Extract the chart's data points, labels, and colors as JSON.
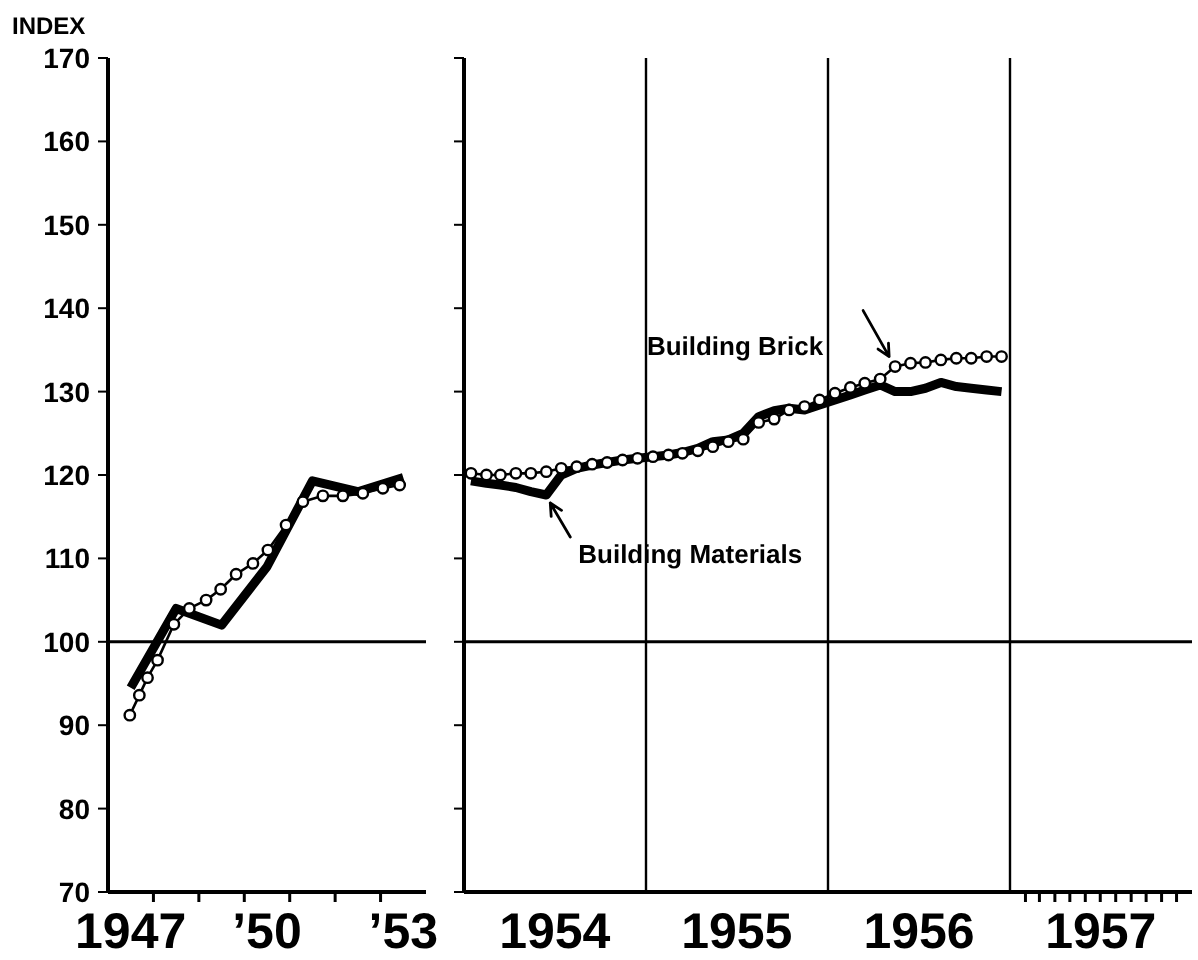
{
  "chart_data": [
    {
      "type": "line",
      "ylabel": "INDEX",
      "ylim": [
        70,
        170
      ],
      "yticks": [
        70,
        80,
        90,
        100,
        110,
        120,
        130,
        140,
        150,
        160,
        170
      ],
      "xlim": [
        1946.5,
        1953.5
      ],
      "xticks": [
        {
          "value": 1947,
          "label": "1947"
        },
        {
          "value": 1947.5,
          "label": null
        },
        {
          "value": 1948.5,
          "label": null
        },
        {
          "value": 1949.5,
          "label": null
        },
        {
          "value": 1950,
          "label": "’50"
        },
        {
          "value": 1950.5,
          "label": null
        },
        {
          "value": 1951.5,
          "label": null
        },
        {
          "value": 1952.5,
          "label": null
        },
        {
          "value": 1953,
          "label": "’53"
        }
      ],
      "ref_lines": [
        {
          "axis": "y",
          "value": 100,
          "color": "#000000"
        }
      ],
      "series": [
        {
          "color": "#000000",
          "marker": "none",
          "x": [
            1947,
            1948,
            1949,
            1950,
            1951,
            1952,
            1953
          ],
          "values": [
            94.5,
            104,
            102,
            109,
            119.3,
            118,
            119.7
          ]
        },
        {
          "color": "#000000",
          "marker": "circle",
          "x": [
            1946.98,
            1947.19,
            1947.37,
            1947.59,
            1947.95,
            1948.29,
            1948.66,
            1948.98,
            1949.32,
            1949.69,
            1950.02,
            1950.42,
            1950.79,
            1951.23,
            1951.67,
            1952.11,
            1952.55,
            1952.92
          ],
          "values": [
            91.2,
            93.6,
            95.7,
            97.8,
            102.1,
            104,
            105,
            106.3,
            108.1,
            109.4,
            111,
            114,
            116.8,
            117.5,
            117.5,
            117.8,
            118.4,
            118.8
          ]
        }
      ]
    },
    {
      "type": "line",
      "tick_labels": "x",
      "ylim": [
        70,
        170
      ],
      "yticks": [
        70,
        80,
        90,
        100,
        110,
        120,
        130,
        140,
        150,
        160,
        170
      ],
      "xlim": [
        "1954-01-01",
        "1958-01-01"
      ],
      "xticks": [
        {
          "value": "1954-07-02",
          "label": "1954"
        },
        {
          "value": "1955-07-02",
          "label": "1955"
        },
        {
          "value": "1956-07-02",
          "label": "1956"
        },
        {
          "value": "1957-07-02",
          "label": "1957"
        },
        {
          "value": "1957-02-01",
          "label": null
        },
        {
          "value": "1957-03-01",
          "label": null
        },
        {
          "value": "1957-04-01",
          "label": null
        },
        {
          "value": "1957-05-01",
          "label": null
        },
        {
          "value": "1957-06-01",
          "label": null
        },
        {
          "value": "1957-07-01",
          "label": null
        },
        {
          "value": "1957-08-01",
          "label": null
        },
        {
          "value": "1957-09-01",
          "label": null
        },
        {
          "value": "1957-10-01",
          "label": null
        },
        {
          "value": "1957-11-01",
          "label": null
        },
        {
          "value": "1957-12-01",
          "label": null
        }
      ],
      "ref_lines": [
        {
          "axis": "y",
          "value": 100,
          "color": "#000000"
        },
        {
          "axis": "x",
          "value": "1955-01-01",
          "color": "#000000"
        },
        {
          "axis": "x",
          "value": "1956-01-01",
          "color": "#000000"
        },
        {
          "axis": "x",
          "value": "1957-01-01",
          "color": "#000000"
        }
      ],
      "x": [
        "1954-01-15",
        "1954-02-15",
        "1954-03-15",
        "1954-04-15",
        "1954-05-15",
        "1954-06-15",
        "1954-07-15",
        "1954-08-15",
        "1954-09-15",
        "1954-10-15",
        "1954-11-15",
        "1954-12-15",
        "1955-01-15",
        "1955-02-15",
        "1955-03-15",
        "1955-04-15",
        "1955-05-15",
        "1955-06-15",
        "1955-07-15",
        "1955-08-15",
        "1955-09-15",
        "1955-10-15",
        "1955-11-15",
        "1955-12-15",
        "1956-01-15",
        "1956-02-15",
        "1956-03-15",
        "1956-04-15",
        "1956-05-15",
        "1956-06-15",
        "1956-07-15",
        "1956-08-15",
        "1956-09-15",
        "1956-10-15",
        "1956-11-15",
        "1956-12-15"
      ],
      "series": [
        {
          "name": "Building Materials",
          "color": "#000000",
          "marker": "none",
          "values": [
            119.3,
            119,
            118.8,
            118.5,
            118,
            117.6,
            120,
            120.8,
            121.2,
            121.5,
            121.8,
            122,
            122.2,
            122.4,
            122.7,
            123.2,
            124,
            124.2,
            125,
            127,
            127.7,
            128,
            127.8,
            128.4,
            129,
            129.6,
            130.2,
            130.8,
            130,
            130,
            130.4,
            131.1,
            130.6,
            130.4,
            130.2,
            130
          ]
        },
        {
          "name": "Building Brick",
          "color": "#000000",
          "marker": "circle",
          "values": [
            120.2,
            120,
            120,
            120.2,
            120.2,
            120.4,
            120.8,
            121,
            121.3,
            121.5,
            121.8,
            122,
            122.2,
            122.4,
            122.6,
            122.9,
            123.4,
            124,
            124.3,
            126.3,
            126.7,
            127.8,
            128.2,
            129,
            129.8,
            130.5,
            131,
            131.5,
            133,
            133.4,
            133.5,
            133.8,
            134,
            134,
            134.2,
            134.2
          ]
        }
      ]
    }
  ]
}
